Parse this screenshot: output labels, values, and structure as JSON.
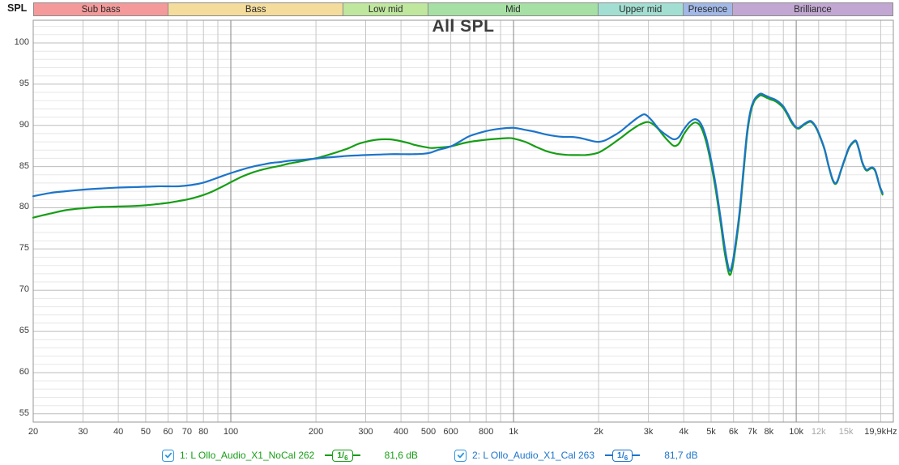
{
  "header": {
    "y_axis_title": "SPL",
    "title": "All SPL"
  },
  "bands": [
    {
      "label": "Sub bass",
      "color": "#f49a9a",
      "f_start": 20,
      "f_end": 60
    },
    {
      "label": "Bass",
      "color": "#f3dc9c",
      "f_start": 60,
      "f_end": 250
    },
    {
      "label": "Low mid",
      "color": "#bfe79e",
      "f_start": 250,
      "f_end": 500
    },
    {
      "label": "Mid",
      "color": "#a7e0a5",
      "f_start": 500,
      "f_end": 2000
    },
    {
      "label": "Upper mid",
      "color": "#a2dfd2",
      "f_start": 2000,
      "f_end": 4000
    },
    {
      "label": "Presence",
      "color": "#a2b8e6",
      "f_start": 4000,
      "f_end": 6000
    },
    {
      "label": "Brilliance",
      "color": "#c1a7d2",
      "f_start": 6000,
      "f_end": 22050
    }
  ],
  "axes": {
    "x": {
      "scale": "log",
      "unit": "Hz",
      "min": 20,
      "max": 22050,
      "gridlines": [
        20,
        30,
        40,
        50,
        60,
        70,
        80,
        90,
        100,
        200,
        300,
        400,
        500,
        600,
        700,
        800,
        900,
        1000,
        2000,
        3000,
        4000,
        5000,
        6000,
        7000,
        8000,
        9000,
        10000,
        12000,
        15000,
        19900
      ],
      "major_gridlines": [
        100,
        1000,
        10000
      ],
      "ticks": [
        {
          "f": 20,
          "label": "20"
        },
        {
          "f": 30,
          "label": "30"
        },
        {
          "f": 40,
          "label": "40"
        },
        {
          "f": 50,
          "label": "50"
        },
        {
          "f": 60,
          "label": "60"
        },
        {
          "f": 70,
          "label": "70"
        },
        {
          "f": 80,
          "label": "80"
        },
        {
          "f": 100,
          "label": "100"
        },
        {
          "f": 200,
          "label": "200"
        },
        {
          "f": 300,
          "label": "300"
        },
        {
          "f": 400,
          "label": "400"
        },
        {
          "f": 500,
          "label": "500"
        },
        {
          "f": 600,
          "label": "600"
        },
        {
          "f": 800,
          "label": "800"
        },
        {
          "f": 1000,
          "label": "1k"
        },
        {
          "f": 2000,
          "label": "2k"
        },
        {
          "f": 3000,
          "label": "3k"
        },
        {
          "f": 4000,
          "label": "4k"
        },
        {
          "f": 5000,
          "label": "5k"
        },
        {
          "f": 6000,
          "label": "6k"
        },
        {
          "f": 7000,
          "label": "7k"
        },
        {
          "f": 8000,
          "label": "8k"
        },
        {
          "f": 10000,
          "label": "10k"
        },
        {
          "f": 12000,
          "label": "12k",
          "muted": true
        },
        {
          "f": 15000,
          "label": "15k",
          "muted": true
        },
        {
          "f": 19900,
          "label": "19,9kHz"
        }
      ]
    },
    "y": {
      "unit": "dB",
      "min": 54,
      "max": 102.75,
      "tick_values": [
        100,
        95,
        90,
        85,
        80,
        75,
        70,
        65,
        60,
        55
      ],
      "minor_step": 1,
      "major_step": 5
    }
  },
  "legend": {
    "items": [
      {
        "checked": true,
        "label": "1: L Ollo_Audio_X1_NoCal 262",
        "smoothing": "1/6",
        "value": "81,6 dB",
        "color": "#169e16"
      },
      {
        "checked": true,
        "label": "2: L Ollo_Audio_X1_Cal 263",
        "smoothing": "1/6",
        "value": "81,7 dB",
        "color": "#1c74ca"
      }
    ],
    "checkbox_color": "#2d96e0"
  },
  "colors": {
    "grid_minor_h": "#e7e7e7",
    "grid_major_h": "#bdbdbd",
    "grid_v": "#c6c6c6",
    "grid_v_major": "#858585",
    "plot_border": "#979797",
    "trace_green": "#169e16",
    "trace_blue": "#1c74ca"
  },
  "chart_data": {
    "type": "line",
    "title": "All SPL",
    "ylabel": "SPL",
    "x_scale": "log",
    "xlim": [
      20,
      22050
    ],
    "ylim": [
      54,
      102.75
    ],
    "grid": true,
    "legend_position": "bottom",
    "series": [
      {
        "name": "1: L Ollo_Audio_X1_NoCal 262",
        "color": "#169e16",
        "smoothing": "1/6",
        "avg_level": "81,6 dB",
        "points": [
          [
            20,
            78.8
          ],
          [
            23,
            79.3
          ],
          [
            26,
            79.7
          ],
          [
            30,
            79.95
          ],
          [
            35,
            80.1
          ],
          [
            40,
            80.15
          ],
          [
            45,
            80.2
          ],
          [
            50,
            80.3
          ],
          [
            55,
            80.45
          ],
          [
            60,
            80.6
          ],
          [
            65,
            80.8
          ],
          [
            70,
            81
          ],
          [
            75,
            81.25
          ],
          [
            80,
            81.55
          ],
          [
            85,
            81.9
          ],
          [
            90,
            82.3
          ],
          [
            95,
            82.7
          ],
          [
            100,
            83.1
          ],
          [
            110,
            83.8
          ],
          [
            120,
            84.3
          ],
          [
            130,
            84.65
          ],
          [
            140,
            84.9
          ],
          [
            150,
            85.1
          ],
          [
            160,
            85.35
          ],
          [
            175,
            85.6
          ],
          [
            190,
            85.85
          ],
          [
            205,
            86.1
          ],
          [
            220,
            86.4
          ],
          [
            240,
            86.8
          ],
          [
            260,
            87.2
          ],
          [
            280,
            87.7
          ],
          [
            300,
            88
          ],
          [
            320,
            88.2
          ],
          [
            340,
            88.3
          ],
          [
            365,
            88.3
          ],
          [
            390,
            88.15
          ],
          [
            420,
            87.9
          ],
          [
            450,
            87.6
          ],
          [
            480,
            87.4
          ],
          [
            510,
            87.25
          ],
          [
            540,
            87.3
          ],
          [
            600,
            87.45
          ],
          [
            650,
            87.75
          ],
          [
            700,
            88
          ],
          [
            800,
            88.25
          ],
          [
            900,
            88.4
          ],
          [
            950,
            88.45
          ],
          [
            1000,
            88.4
          ],
          [
            1100,
            88
          ],
          [
            1200,
            87.4
          ],
          [
            1300,
            86.9
          ],
          [
            1400,
            86.6
          ],
          [
            1500,
            86.45
          ],
          [
            1600,
            86.4
          ],
          [
            1700,
            86.4
          ],
          [
            1800,
            86.4
          ],
          [
            1900,
            86.5
          ],
          [
            2000,
            86.7
          ],
          [
            2100,
            87.1
          ],
          [
            2250,
            87.8
          ],
          [
            2400,
            88.5
          ],
          [
            2600,
            89.4
          ],
          [
            2800,
            90.1
          ],
          [
            3000,
            90.4
          ],
          [
            3200,
            89.8
          ],
          [
            3400,
            88.7
          ],
          [
            3550,
            88
          ],
          [
            3700,
            87.5
          ],
          [
            3850,
            87.8
          ],
          [
            4000,
            88.9
          ],
          [
            4200,
            89.9
          ],
          [
            4400,
            90.35
          ],
          [
            4600,
            89.8
          ],
          [
            4800,
            88
          ],
          [
            5000,
            85.3
          ],
          [
            5200,
            82
          ],
          [
            5400,
            78.2
          ],
          [
            5600,
            74.3
          ],
          [
            5800,
            71.9
          ],
          [
            5950,
            72.8
          ],
          [
            6100,
            75.2
          ],
          [
            6300,
            79
          ],
          [
            6500,
            84
          ],
          [
            6700,
            88.8
          ],
          [
            6900,
            91.6
          ],
          [
            7100,
            92.9
          ],
          [
            7300,
            93.4
          ],
          [
            7500,
            93.65
          ],
          [
            7800,
            93.4
          ],
          [
            8100,
            93.15
          ],
          [
            8400,
            92.95
          ],
          [
            8700,
            92.6
          ],
          [
            9000,
            92.1
          ],
          [
            9300,
            91.3
          ],
          [
            9600,
            90.4
          ],
          [
            9900,
            89.8
          ],
          [
            10200,
            89.6
          ],
          [
            10600,
            90
          ],
          [
            11000,
            90.35
          ],
          [
            11300,
            90.4
          ],
          [
            11700,
            89.8
          ],
          [
            12100,
            88.7
          ],
          [
            12600,
            87
          ],
          [
            13000,
            85.1
          ],
          [
            13400,
            83.5
          ],
          [
            13700,
            82.9
          ],
          [
            14000,
            83.2
          ],
          [
            14400,
            84.5
          ],
          [
            14900,
            86
          ],
          [
            15400,
            87.3
          ],
          [
            15900,
            87.9
          ],
          [
            16300,
            88
          ],
          [
            16700,
            86.9
          ],
          [
            17100,
            85.5
          ],
          [
            17500,
            84.7
          ],
          [
            17800,
            84.5
          ],
          [
            18200,
            84.7
          ],
          [
            18600,
            84.8
          ],
          [
            19000,
            84.5
          ],
          [
            19400,
            83.5
          ],
          [
            19800,
            82.4
          ],
          [
            20200,
            81.6
          ]
        ]
      },
      {
        "name": "2: L Ollo_Audio_X1_Cal 263",
        "color": "#1c74ca",
        "smoothing": "1/6",
        "avg_level": "81,7 dB",
        "points": [
          [
            20,
            81.4
          ],
          [
            23,
            81.8
          ],
          [
            26,
            82
          ],
          [
            30,
            82.2
          ],
          [
            35,
            82.35
          ],
          [
            40,
            82.45
          ],
          [
            45,
            82.5
          ],
          [
            50,
            82.55
          ],
          [
            55,
            82.6
          ],
          [
            60,
            82.6
          ],
          [
            65,
            82.6
          ],
          [
            70,
            82.7
          ],
          [
            75,
            82.85
          ],
          [
            80,
            83.05
          ],
          [
            85,
            83.35
          ],
          [
            90,
            83.65
          ],
          [
            95,
            83.95
          ],
          [
            100,
            84.2
          ],
          [
            110,
            84.65
          ],
          [
            120,
            85
          ],
          [
            130,
            85.25
          ],
          [
            140,
            85.45
          ],
          [
            150,
            85.55
          ],
          [
            160,
            85.7
          ],
          [
            175,
            85.8
          ],
          [
            190,
            85.9
          ],
          [
            205,
            86
          ],
          [
            220,
            86.1
          ],
          [
            240,
            86.2
          ],
          [
            260,
            86.3
          ],
          [
            280,
            86.35
          ],
          [
            300,
            86.4
          ],
          [
            330,
            86.45
          ],
          [
            365,
            86.5
          ],
          [
            400,
            86.5
          ],
          [
            440,
            86.5
          ],
          [
            480,
            86.55
          ],
          [
            510,
            86.7
          ],
          [
            540,
            87
          ],
          [
            600,
            87.45
          ],
          [
            650,
            88.1
          ],
          [
            700,
            88.7
          ],
          [
            800,
            89.3
          ],
          [
            900,
            89.6
          ],
          [
            1000,
            89.7
          ],
          [
            1100,
            89.45
          ],
          [
            1200,
            89.2
          ],
          [
            1300,
            88.9
          ],
          [
            1400,
            88.7
          ],
          [
            1500,
            88.6
          ],
          [
            1600,
            88.6
          ],
          [
            1700,
            88.5
          ],
          [
            1800,
            88.3
          ],
          [
            1900,
            88.1
          ],
          [
            2000,
            88
          ],
          [
            2100,
            88.15
          ],
          [
            2250,
            88.7
          ],
          [
            2400,
            89.3
          ],
          [
            2600,
            90.3
          ],
          [
            2800,
            91.1
          ],
          [
            2930,
            91.3
          ],
          [
            3100,
            90.5
          ],
          [
            3300,
            89.4
          ],
          [
            3550,
            88.6
          ],
          [
            3700,
            88.3
          ],
          [
            3850,
            88.6
          ],
          [
            4000,
            89.5
          ],
          [
            4200,
            90.4
          ],
          [
            4400,
            90.75
          ],
          [
            4600,
            90.2
          ],
          [
            4800,
            88.5
          ],
          [
            5000,
            85.8
          ],
          [
            5200,
            82.6
          ],
          [
            5400,
            78.8
          ],
          [
            5600,
            75
          ],
          [
            5800,
            72.4
          ],
          [
            5950,
            73.3
          ],
          [
            6100,
            75.7
          ],
          [
            6300,
            79.5
          ],
          [
            6500,
            84.5
          ],
          [
            6700,
            89.2
          ],
          [
            6900,
            91.9
          ],
          [
            7100,
            93.1
          ],
          [
            7300,
            93.6
          ],
          [
            7500,
            93.85
          ],
          [
            7800,
            93.6
          ],
          [
            8100,
            93.35
          ],
          [
            8400,
            93.15
          ],
          [
            8700,
            92.8
          ],
          [
            9000,
            92.3
          ],
          [
            9300,
            91.5
          ],
          [
            9600,
            90.6
          ],
          [
            9900,
            89.9
          ],
          [
            10200,
            89.7
          ],
          [
            10600,
            90.1
          ],
          [
            11000,
            90.45
          ],
          [
            11300,
            90.5
          ],
          [
            11700,
            89.9
          ],
          [
            12100,
            88.8
          ],
          [
            12600,
            87.1
          ],
          [
            13000,
            85.2
          ],
          [
            13400,
            83.6
          ],
          [
            13700,
            83
          ],
          [
            14000,
            83.3
          ],
          [
            14400,
            84.6
          ],
          [
            14900,
            86.1
          ],
          [
            15400,
            87.4
          ],
          [
            15900,
            88
          ],
          [
            16300,
            88.1
          ],
          [
            16700,
            87
          ],
          [
            17100,
            85.6
          ],
          [
            17500,
            84.8
          ],
          [
            17800,
            84.6
          ],
          [
            18200,
            84.8
          ],
          [
            18600,
            84.9
          ],
          [
            19000,
            84.6
          ],
          [
            19400,
            83.6
          ],
          [
            19700,
            82.7
          ],
          [
            20200,
            81.8
          ]
        ]
      }
    ]
  }
}
